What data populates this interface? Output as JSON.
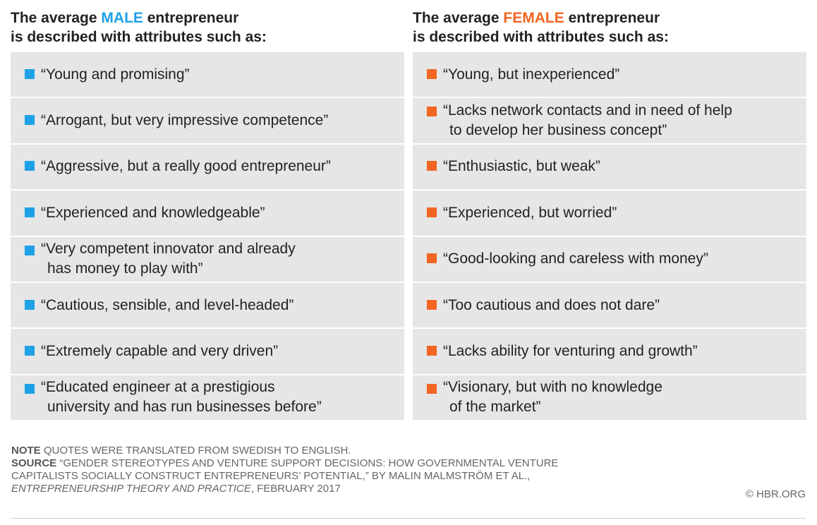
{
  "columns": [
    {
      "title": {
        "before": "The average ",
        "highlight": "MALE",
        "after": " entrepreneur",
        "line2": "is described with attributes such as:"
      },
      "color": "#1ea1e6",
      "items": [
        [
          "“Young and promising”"
        ],
        [
          "“Arrogant, but very impressive competence”"
        ],
        [
          "“Aggressive, but a really good entrepreneur”"
        ],
        [
          "“Experienced and knowledgeable”"
        ],
        [
          "“Very competent innovator and already",
          "has money to play with”"
        ],
        [
          "“Cautious, sensible, and level-headed”"
        ],
        [
          "“Extremely capable and very driven”"
        ],
        [
          "“Educated engineer at a prestigious",
          "university and has run businesses before”"
        ]
      ]
    },
    {
      "title": {
        "before": "The average ",
        "highlight": "FEMALE",
        "after": " entrepreneur",
        "line2": "is described with attributes such as:"
      },
      "color": "#f26522",
      "items": [
        [
          "“Young, but inexperienced”"
        ],
        [
          "“Lacks network contacts and in need of help",
          "to develop her business concept”"
        ],
        [
          "“Enthusiastic, but weak”"
        ],
        [
          "“Experienced, but worried”"
        ],
        [
          "“Good-looking and careless with money”"
        ],
        [
          "“Too cautious and does not dare”"
        ],
        [
          "“Lacks ability for venturing and growth”"
        ],
        [
          "“Visionary, but with no knowledge",
          "of the market”"
        ]
      ]
    }
  ],
  "note": {
    "label": "NOTE",
    "text": "QUOTES WERE TRANSLATED FROM SWEDISH TO ENGLISH."
  },
  "source": {
    "label": "SOURCE",
    "text": "“GENDER STEREOTYPES AND VENTURE SUPPORT DECISIONS: HOW GOVERNMENTAL VENTURE CAPITALISTS SOCIALLY CONSTRUCT ENTREPRENEURS’ POTENTIAL,” BY MALIN MALMSTRÖM ET AL.,",
    "journal": "ENTREPRENEURSHIP THEORY AND PRACTICE",
    "date": ", FEBRUARY 2017"
  },
  "credit": "© HBR.ORG"
}
